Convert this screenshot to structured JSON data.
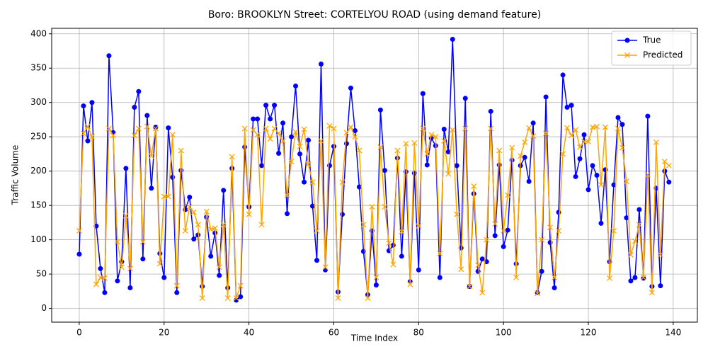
{
  "chart_data": {
    "type": "line",
    "title": "Boro: BROOKLYN Street: CORTELYOU ROAD (using demand feature)",
    "xlabel": "Time Index",
    "ylabel": "Traffic Volume",
    "x": [
      0,
      1,
      2,
      3,
      4,
      5,
      6,
      7,
      8,
      9,
      10,
      11,
      12,
      13,
      14,
      15,
      16,
      17,
      18,
      19,
      20,
      21,
      22,
      23,
      24,
      25,
      26,
      27,
      28,
      29,
      30,
      31,
      32,
      33,
      34,
      35,
      36,
      37,
      38,
      39,
      40,
      41,
      42,
      43,
      44,
      45,
      46,
      47,
      48,
      49,
      50,
      51,
      52,
      53,
      54,
      55,
      56,
      57,
      58,
      59,
      60,
      61,
      62,
      63,
      64,
      65,
      66,
      67,
      68,
      69,
      70,
      71,
      72,
      73,
      74,
      75,
      76,
      77,
      78,
      79,
      80,
      81,
      82,
      83,
      84,
      85,
      86,
      87,
      88,
      89,
      90,
      91,
      92,
      93,
      94,
      95,
      96,
      97,
      98,
      99,
      100,
      101,
      102,
      103,
      104,
      105,
      106,
      107,
      108,
      109,
      110,
      111,
      112,
      113,
      114,
      115,
      116,
      117,
      118,
      119,
      120,
      121,
      122,
      123,
      124,
      125,
      126,
      127,
      128,
      129,
      130,
      131,
      132,
      133,
      134,
      135,
      136,
      137,
      138,
      139
    ],
    "series": [
      {
        "name": "True",
        "color": "#0000ff",
        "marker": "circle",
        "values": [
          79,
          295,
          244,
          300,
          120,
          58,
          23,
          368,
          256,
          40,
          68,
          204,
          30,
          293,
          316,
          72,
          281,
          175,
          264,
          80,
          45,
          263,
          191,
          23,
          201,
          144,
          162,
          101,
          107,
          32,
          133,
          76,
          110,
          48,
          172,
          30,
          204,
          12,
          17,
          235,
          148,
          276,
          276,
          208,
          296,
          276,
          296,
          226,
          270,
          138,
          250,
          324,
          225,
          184,
          245,
          149,
          70,
          356,
          56,
          208,
          236,
          24,
          137,
          240,
          321,
          259,
          177,
          83,
          20,
          113,
          34,
          289,
          201,
          84,
          92,
          219,
          76,
          199,
          39,
          197,
          56,
          313,
          209,
          248,
          237,
          45,
          261,
          228,
          392,
          208,
          88,
          306,
          32,
          167,
          54,
          72,
          68,
          287,
          106,
          209,
          90,
          114,
          216,
          65,
          208,
          220,
          185,
          270,
          23,
          54,
          308,
          96,
          30,
          140,
          340,
          293,
          296,
          192,
          218,
          253,
          173,
          208,
          194,
          124,
          202,
          68,
          180,
          278,
          268,
          132,
          40,
          45,
          144,
          44,
          280,
          32,
          175,
          33,
          200,
          184
        ]
      },
      {
        "name": "Predicted",
        "color": "#ffa500",
        "marker": "x",
        "values": [
          113,
          255,
          265,
          250,
          35,
          45,
          44,
          262,
          252,
          97,
          60,
          135,
          58,
          252,
          262,
          97,
          265,
          222,
          262,
          65,
          163,
          163,
          253,
          33,
          230,
          113,
          148,
          140,
          122,
          15,
          141,
          115,
          117,
          60,
          122,
          15,
          221,
          15,
          33,
          262,
          137,
          260,
          253,
          122,
          262,
          247,
          262,
          255,
          244,
          165,
          214,
          257,
          236,
          261,
          210,
          184,
          113,
          244,
          60,
          266,
          262,
          15,
          184,
          256,
          264,
          250,
          230,
          122,
          15,
          148,
          45,
          235,
          148,
          95,
          64,
          230,
          112,
          240,
          35,
          241,
          120,
          262,
          225,
          253,
          250,
          80,
          244,
          196,
          260,
          137,
          57,
          262,
          32,
          178,
          63,
          23,
          100,
          262,
          123,
          230,
          113,
          165,
          234,
          45,
          222,
          242,
          263,
          251,
          22,
          100,
          255,
          118,
          45,
          113,
          225,
          263,
          252,
          260,
          235,
          243,
          243,
          264,
          265,
          180,
          264,
          44,
          113,
          262,
          234,
          185,
          78,
          98,
          122,
          45,
          195,
          23,
          242,
          78,
          214,
          208
        ]
      }
    ],
    "xlim": [
      -6.5,
      145.7
    ],
    "ylim": [
      -20,
      408
    ],
    "xticks": [
      0,
      20,
      40,
      60,
      80,
      100,
      120,
      140
    ],
    "yticks": [
      0,
      50,
      100,
      150,
      200,
      250,
      300,
      350,
      400
    ],
    "grid": true,
    "legend": "upper right"
  }
}
